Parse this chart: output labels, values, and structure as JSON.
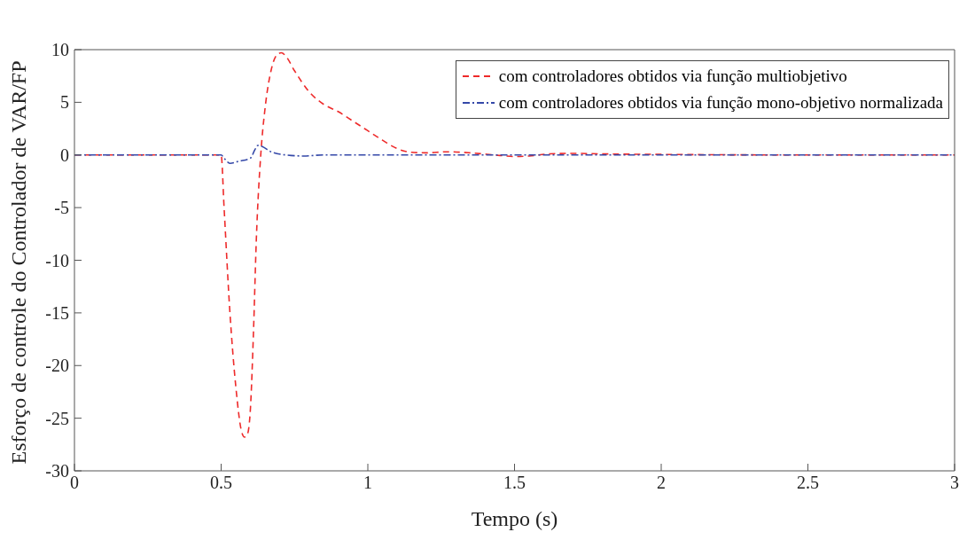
{
  "chart_data": {
    "type": "line",
    "xlabel": "Tempo (s)",
    "ylabel": "Esforço de controle do Controlador de VAR/FP",
    "xlim": [
      0,
      3
    ],
    "xticks": [
      0,
      0.5,
      1,
      1.5,
      2,
      2.5,
      3
    ],
    "ylim": [
      -30,
      10
    ],
    "yticks": [
      -30,
      -25,
      -20,
      -15,
      -10,
      -5,
      0,
      5,
      10
    ],
    "grid": false,
    "legend": "top right",
    "marker": "none",
    "series": [
      {
        "name": "com controladores obtidos via função multiobjetivo",
        "color": "#ee2a2a",
        "line_style": "dashed",
        "x": [
          0,
          0.5,
          0.51,
          0.53,
          0.55,
          0.57,
          0.58,
          0.59,
          0.6,
          0.61,
          0.62,
          0.635,
          0.65,
          0.67,
          0.69,
          0.705,
          0.72,
          0.75,
          0.8,
          0.85,
          0.9,
          0.95,
          1.0,
          1.05,
          1.1,
          1.15,
          1.2,
          1.27,
          1.35,
          1.45,
          1.5,
          1.55,
          1.62,
          1.7,
          1.8,
          2.0,
          2.5,
          3
        ],
        "values": [
          0,
          0,
          -5,
          -15,
          -22,
          -26.3,
          -26.8,
          -26.5,
          -24,
          -17,
          -8,
          0,
          4.5,
          8,
          9.5,
          9.7,
          9.4,
          8,
          6,
          4.8,
          4.1,
          3.2,
          2.3,
          1.4,
          0.6,
          0.25,
          0.2,
          0.3,
          0.2,
          -0.05,
          -0.15,
          -0.1,
          0.1,
          0.15,
          0.1,
          0.05,
          0,
          0
        ]
      },
      {
        "name": "com controladores obtidos via função mono-objetivo normalizada",
        "color": "#3448a8",
        "line_style": "dashdot",
        "x": [
          0,
          0.5,
          0.51,
          0.53,
          0.56,
          0.6,
          0.615,
          0.625,
          0.64,
          0.67,
          0.72,
          0.78,
          0.85,
          1,
          3
        ],
        "values": [
          0,
          0,
          -0.3,
          -0.8,
          -0.6,
          -0.3,
          0.5,
          0.9,
          0.8,
          0.3,
          0,
          -0.1,
          0,
          0,
          0
        ]
      }
    ]
  }
}
